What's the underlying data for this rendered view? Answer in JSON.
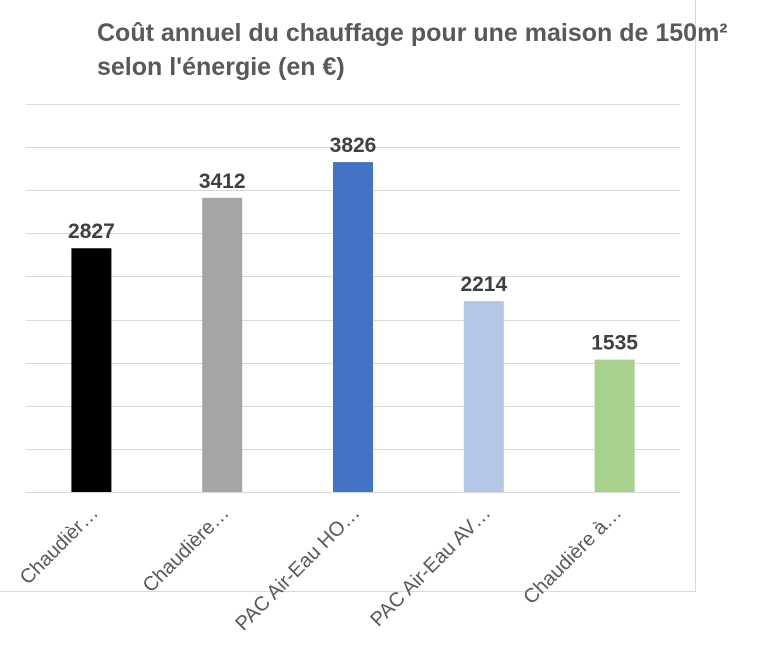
{
  "chart_data": {
    "type": "bar",
    "title": "Coût annuel du chauffage pour une maison de 150m² selon l'énergie (en €)",
    "categories": [
      "Chaudièr…",
      "Chaudière…",
      "PAC Air-Eau HO…",
      "PAC Air-Eau AV…",
      "Chaudière à…"
    ],
    "values": [
      2827,
      3412,
      3826,
      2214,
      1535
    ],
    "colors": [
      "#000000",
      "#a5a5a5",
      "#4472c4",
      "#b4c7e7",
      "#a9d18e"
    ],
    "ylim": [
      0,
      4500
    ],
    "grid": true,
    "legend": "none"
  }
}
